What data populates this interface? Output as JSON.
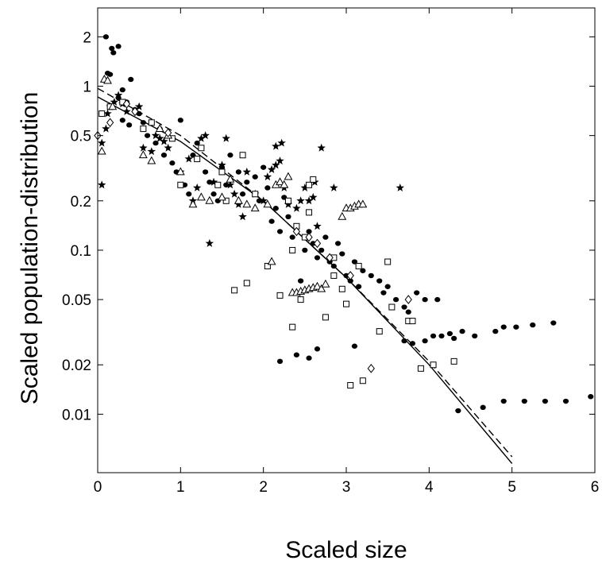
{
  "chart_data": {
    "type": "scatter",
    "xlabel": "Scaled size",
    "ylabel": "Scaled population-distribution",
    "xscale": "linear",
    "yscale": "log",
    "xlim": [
      0,
      6
    ],
    "ylim": [
      0.0044,
      3
    ],
    "x_ticks": [
      0,
      1,
      2,
      3,
      4,
      5,
      6
    ],
    "x_tick_labels": [
      "0",
      "1",
      "2",
      "3",
      "4",
      "5",
      "6"
    ],
    "y_ticks": [
      0.01,
      0.02,
      0.05,
      0.1,
      0.2,
      0.5,
      1,
      2
    ],
    "y_tick_labels": [
      "0.01",
      "0.02",
      "0.05",
      "0.1",
      "0.2",
      "0.5",
      "1",
      "2"
    ],
    "grid": false,
    "legend": "none",
    "series": [
      {
        "marker": "filled-circle",
        "points": [
          [
            0.1,
            2.0
          ],
          [
            0.17,
            1.7
          ],
          [
            0.25,
            1.75
          ],
          [
            0.19,
            1.6
          ],
          [
            0.12,
            1.2
          ],
          [
            0.15,
            1.18
          ],
          [
            0.4,
            1.1
          ],
          [
            0.3,
            0.95
          ],
          [
            0.25,
            0.85
          ],
          [
            0.35,
            0.8
          ],
          [
            0.45,
            0.72
          ],
          [
            0.5,
            0.68
          ],
          [
            0.55,
            0.6
          ],
          [
            0.3,
            0.62
          ],
          [
            0.38,
            0.58
          ],
          [
            0.6,
            0.5
          ],
          [
            0.7,
            0.45
          ],
          [
            0.75,
            0.55
          ],
          [
            0.8,
            0.38
          ],
          [
            0.9,
            0.34
          ],
          [
            1.0,
            0.62
          ],
          [
            0.95,
            0.3
          ],
          [
            1.05,
            0.25
          ],
          [
            1.1,
            0.22
          ],
          [
            1.15,
            0.38
          ],
          [
            1.2,
            0.45
          ],
          [
            1.3,
            0.3
          ],
          [
            1.35,
            0.26
          ],
          [
            1.4,
            0.22
          ],
          [
            1.45,
            0.2
          ],
          [
            1.5,
            0.32
          ],
          [
            1.55,
            0.25
          ],
          [
            1.6,
            0.38
          ],
          [
            1.7,
            0.3
          ],
          [
            1.75,
            0.22
          ],
          [
            1.8,
            0.26
          ],
          [
            1.9,
            0.28
          ],
          [
            1.95,
            0.2
          ],
          [
            2.0,
            0.32
          ],
          [
            2.05,
            0.24
          ],
          [
            2.1,
            0.15
          ],
          [
            2.15,
            0.18
          ],
          [
            2.2,
            0.13
          ],
          [
            2.25,
            0.21
          ],
          [
            2.3,
            0.16
          ],
          [
            2.35,
            0.12
          ],
          [
            2.4,
            0.14
          ],
          [
            2.5,
            0.1
          ],
          [
            2.55,
            0.13
          ],
          [
            2.6,
            0.11
          ],
          [
            2.65,
            0.09
          ],
          [
            2.7,
            0.1
          ],
          [
            2.75,
            0.12
          ],
          [
            2.8,
            0.085
          ],
          [
            2.85,
            0.08
          ],
          [
            2.9,
            0.11
          ],
          [
            2.95,
            0.095
          ],
          [
            3.0,
            0.07
          ],
          [
            3.05,
            0.065
          ],
          [
            3.1,
            0.085
          ],
          [
            3.15,
            0.06
          ],
          [
            3.2,
            0.075
          ],
          [
            3.3,
            0.07
          ],
          [
            3.4,
            0.065
          ],
          [
            3.45,
            0.055
          ],
          [
            3.5,
            0.06
          ],
          [
            3.6,
            0.05
          ],
          [
            3.7,
            0.045
          ],
          [
            3.75,
            0.042
          ],
          [
            3.85,
            0.055
          ],
          [
            3.95,
            0.05
          ],
          [
            4.1,
            0.05
          ],
          [
            3.7,
            0.028
          ],
          [
            3.8,
            0.027
          ],
          [
            3.95,
            0.028
          ],
          [
            4.05,
            0.03
          ],
          [
            4.15,
            0.03
          ],
          [
            4.25,
            0.031
          ],
          [
            4.3,
            0.029
          ],
          [
            4.4,
            0.032
          ],
          [
            4.55,
            0.03
          ],
          [
            4.8,
            0.032
          ],
          [
            4.9,
            0.034
          ],
          [
            5.05,
            0.034
          ],
          [
            5.25,
            0.035
          ],
          [
            5.5,
            0.036
          ],
          [
            2.2,
            0.021
          ],
          [
            2.4,
            0.023
          ],
          [
            2.55,
            0.022
          ],
          [
            2.65,
            0.025
          ],
          [
            3.1,
            0.026
          ],
          [
            2.45,
            0.065
          ],
          [
            4.35,
            0.0105
          ],
          [
            4.65,
            0.011
          ],
          [
            4.9,
            0.012
          ],
          [
            5.15,
            0.012
          ],
          [
            5.4,
            0.012
          ],
          [
            5.65,
            0.012
          ],
          [
            5.95,
            0.0128
          ]
        ]
      },
      {
        "marker": "filled-star",
        "points": [
          [
            0.05,
            0.25
          ],
          [
            0.05,
            0.45
          ],
          [
            0.1,
            0.55
          ],
          [
            0.12,
            0.68
          ],
          [
            0.15,
            0.75
          ],
          [
            0.2,
            0.8
          ],
          [
            0.25,
            0.88
          ],
          [
            0.3,
            0.78
          ],
          [
            0.35,
            0.7
          ],
          [
            0.5,
            0.75
          ],
          [
            0.55,
            0.42
          ],
          [
            0.65,
            0.4
          ],
          [
            0.7,
            0.5
          ],
          [
            0.75,
            0.48
          ],
          [
            0.8,
            0.46
          ],
          [
            0.85,
            0.42
          ],
          [
            1.0,
            0.3
          ],
          [
            1.1,
            0.36
          ],
          [
            1.15,
            0.2
          ],
          [
            1.2,
            0.24
          ],
          [
            1.25,
            0.48
          ],
          [
            1.3,
            0.5
          ],
          [
            1.35,
            0.11
          ],
          [
            1.4,
            0.26
          ],
          [
            1.5,
            0.33
          ],
          [
            1.55,
            0.48
          ],
          [
            1.6,
            0.25
          ],
          [
            1.65,
            0.22
          ],
          [
            1.7,
            0.19
          ],
          [
            1.75,
            0.16
          ],
          [
            1.8,
            0.3
          ],
          [
            1.9,
            0.22
          ],
          [
            2.0,
            0.2
          ],
          [
            2.05,
            0.28
          ],
          [
            2.1,
            0.31
          ],
          [
            2.15,
            0.33
          ],
          [
            2.2,
            0.35
          ],
          [
            2.15,
            0.43
          ],
          [
            2.22,
            0.45
          ],
          [
            2.25,
            0.24
          ],
          [
            2.3,
            0.19
          ],
          [
            2.4,
            0.18
          ],
          [
            2.45,
            0.2
          ],
          [
            2.5,
            0.24
          ],
          [
            2.55,
            0.2
          ],
          [
            2.6,
            0.21
          ],
          [
            2.62,
            0.26
          ],
          [
            2.65,
            0.14
          ],
          [
            2.7,
            0.42
          ],
          [
            2.85,
            0.24
          ],
          [
            3.65,
            0.24
          ]
        ]
      },
      {
        "marker": "open-square",
        "points": [
          [
            0.05,
            0.68
          ],
          [
            0.15,
            0.75
          ],
          [
            0.3,
            0.8
          ],
          [
            0.55,
            0.55
          ],
          [
            0.65,
            0.6
          ],
          [
            0.9,
            0.48
          ],
          [
            1.0,
            0.25
          ],
          [
            1.2,
            0.36
          ],
          [
            1.25,
            0.42
          ],
          [
            1.45,
            0.25
          ],
          [
            1.5,
            0.3
          ],
          [
            1.65,
            0.057
          ],
          [
            1.8,
            0.063
          ],
          [
            1.75,
            0.38
          ],
          [
            1.9,
            0.22
          ],
          [
            2.05,
            0.08
          ],
          [
            2.2,
            0.053
          ],
          [
            2.3,
            0.2
          ],
          [
            2.35,
            0.034
          ],
          [
            2.4,
            0.14
          ],
          [
            2.5,
            0.12
          ],
          [
            2.55,
            0.25
          ],
          [
            2.6,
            0.27
          ],
          [
            2.75,
            0.039
          ],
          [
            2.85,
            0.07
          ],
          [
            2.95,
            0.058
          ],
          [
            3.0,
            0.047
          ],
          [
            3.05,
            0.015
          ],
          [
            3.15,
            0.08
          ],
          [
            3.2,
            0.016
          ],
          [
            3.4,
            0.032
          ],
          [
            3.5,
            0.085
          ],
          [
            3.55,
            0.045
          ],
          [
            3.75,
            0.037
          ],
          [
            3.8,
            0.037
          ],
          [
            3.9,
            0.019
          ],
          [
            4.05,
            0.02
          ],
          [
            4.3,
            0.021
          ],
          [
            2.55,
            0.17
          ],
          [
            2.45,
            0.05
          ],
          [
            2.85,
            0.09
          ],
          [
            2.35,
            0.1
          ],
          [
            1.55,
            0.2
          ]
        ]
      },
      {
        "marker": "open-triangle",
        "points": [
          [
            0.05,
            0.4
          ],
          [
            0.08,
            1.1
          ],
          [
            0.12,
            1.08
          ],
          [
            0.18,
            0.75
          ],
          [
            0.55,
            0.38
          ],
          [
            0.65,
            0.35
          ],
          [
            0.75,
            0.55
          ],
          [
            0.85,
            0.5
          ],
          [
            1.0,
            0.3
          ],
          [
            1.15,
            0.19
          ],
          [
            1.25,
            0.21
          ],
          [
            1.35,
            0.2
          ],
          [
            1.5,
            0.21
          ],
          [
            1.6,
            0.27
          ],
          [
            1.7,
            0.2
          ],
          [
            1.8,
            0.19
          ],
          [
            1.9,
            0.18
          ],
          [
            2.05,
            0.19
          ],
          [
            2.15,
            0.25
          ],
          [
            2.2,
            0.26
          ],
          [
            2.25,
            0.25
          ],
          [
            2.3,
            0.28
          ],
          [
            2.35,
            0.055
          ],
          [
            2.4,
            0.055
          ],
          [
            2.45,
            0.056
          ],
          [
            2.5,
            0.057
          ],
          [
            2.55,
            0.058
          ],
          [
            2.6,
            0.059
          ],
          [
            2.65,
            0.06
          ],
          [
            2.7,
            0.058
          ],
          [
            2.75,
            0.062
          ],
          [
            2.95,
            0.16
          ],
          [
            3.0,
            0.18
          ],
          [
            3.05,
            0.18
          ],
          [
            3.1,
            0.185
          ],
          [
            3.15,
            0.19
          ],
          [
            3.2,
            0.19
          ],
          [
            2.1,
            0.085
          ]
        ]
      },
      {
        "marker": "open-diamond",
        "points": [
          [
            0.0,
            0.5
          ],
          [
            0.15,
            0.6
          ],
          [
            0.35,
            0.78
          ],
          [
            0.45,
            0.7
          ],
          [
            0.85,
            0.52
          ],
          [
            2.4,
            0.13
          ],
          [
            2.55,
            0.12
          ],
          [
            2.65,
            0.11
          ],
          [
            2.8,
            0.09
          ],
          [
            3.05,
            0.07
          ],
          [
            3.3,
            0.019
          ],
          [
            3.75,
            0.05
          ]
        ]
      }
    ],
    "fit_lines": [
      {
        "style": "solid",
        "points": [
          [
            0,
            0.86
          ],
          [
            1,
            0.46
          ],
          [
            2,
            0.2
          ],
          [
            3,
            0.068
          ],
          [
            4,
            0.02
          ],
          [
            5,
            0.005
          ]
        ]
      },
      {
        "style": "dashed",
        "points": [
          [
            0,
            0.97
          ],
          [
            1,
            0.5
          ],
          [
            2,
            0.2
          ],
          [
            3,
            0.068
          ],
          [
            4,
            0.021
          ],
          [
            5,
            0.0055
          ]
        ]
      }
    ]
  }
}
